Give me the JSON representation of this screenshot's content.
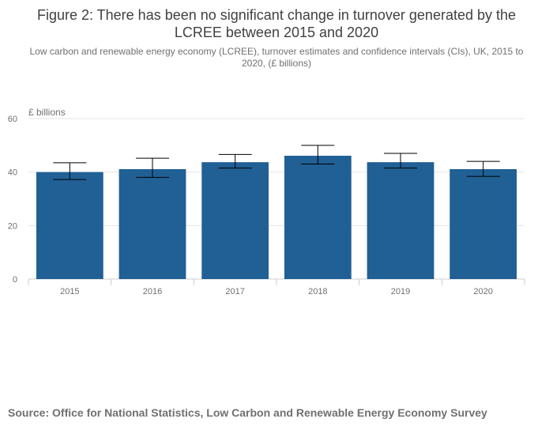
{
  "title": "Figure 2: There has been no significant change in turnover generated by the LCREE between 2015 and 2020",
  "subtitle": "Low carbon and renewable energy economy (LCREE), turnover estimates and confidence intervals (CIs), UK, 2015 to 2020, (£ billions)",
  "source": "Source: Office for National Statistics, Low Carbon and Renewable Energy Economy Survey",
  "colors": {
    "bar": "#206095",
    "errorbar": "#000000",
    "grid": "#e6e6e6",
    "axis": "#cccccc",
    "text": "#707071"
  },
  "chart_data": {
    "type": "bar",
    "ylabel": "£ billions",
    "categories": [
      "2015",
      "2016",
      "2017",
      "2018",
      "2019",
      "2020"
    ],
    "values": [
      40.0,
      41.1,
      43.7,
      46.1,
      43.7,
      41.1
    ],
    "ci_lower": [
      37.2,
      38.0,
      41.5,
      43.0,
      41.5,
      38.4
    ],
    "ci_upper": [
      43.5,
      45.2,
      46.6,
      50.0,
      47.0,
      44.0
    ],
    "yticks": [
      0,
      20,
      40,
      60
    ],
    "ylim": [
      0,
      60
    ],
    "grid": true,
    "legend": "none"
  }
}
